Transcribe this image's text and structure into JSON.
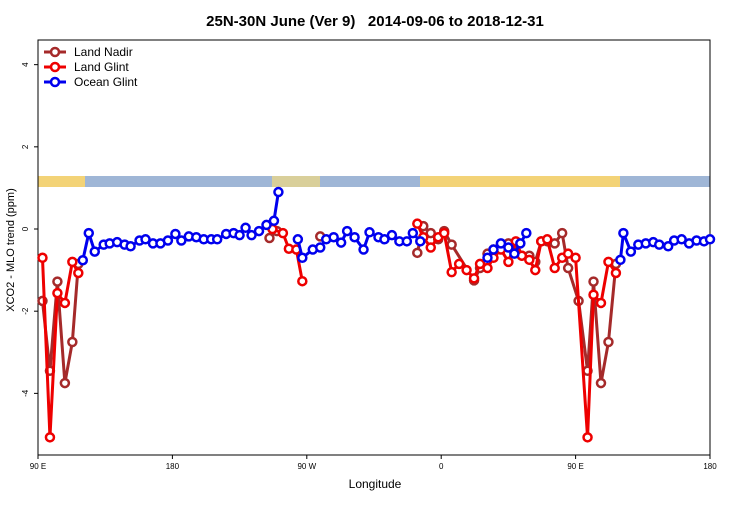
{
  "chart_data": {
    "type": "line",
    "title": "25N-30N June (Ver 9)   2014-09-06 to 2018-12-31",
    "xlabel": "Longitude",
    "ylabel": "XCO2 - MLO trend (ppm)",
    "xlim": [
      90,
      540
    ],
    "ylim": [
      -5.5,
      4.6
    ],
    "xticks": [
      {
        "value": 90,
        "label": "90 E"
      },
      180,
      {
        "value": 270,
        "label": "90 W"
      },
      {
        "value": 360,
        "label": "0"
      },
      {
        "value": 450,
        "label": "90 E"
      },
      {
        "value": 540,
        "label": "180"
      }
    ],
    "yticks": [
      -4,
      -2,
      0,
      2,
      4
    ],
    "legend": "top-left",
    "series": [
      {
        "name": "Land Nadir",
        "color": "#a52a2a",
        "x": [
          93,
          98,
          103,
          108,
          113,
          117,
          180,
          245,
          250,
          265,
          279,
          310,
          344,
          348,
          353,
          358,
          362,
          367,
          382,
          386,
          391,
          395,
          400,
          405,
          410,
          414,
          419,
          423,
          427,
          431,
          436,
          441,
          445,
          452,
          458,
          462,
          467,
          472,
          477
        ],
        "values": [
          -1.75,
          -3.45,
          -1.28,
          -3.75,
          -2.75,
          -0.85,
          null,
          -0.22,
          -0.05,
          null,
          -0.18,
          null,
          -0.58,
          0.07,
          -0.1,
          -0.25,
          -0.05,
          -0.38,
          -1.25,
          -0.95,
          -0.6,
          -0.5,
          -0.38,
          -0.35,
          -0.55,
          -0.65,
          -0.65,
          -0.8,
          -0.3,
          -0.3,
          -0.35,
          -0.1,
          -0.95,
          -1.75,
          -3.45,
          -1.28,
          -3.75,
          -2.75,
          -0.85
        ]
      },
      {
        "name": "Land Glint",
        "color": "#ee0000",
        "x": [
          93,
          98,
          103,
          108,
          113,
          117,
          180,
          247,
          254,
          258,
          263,
          267,
          300,
          344,
          348,
          353,
          358,
          362,
          367,
          372,
          377,
          382,
          386,
          391,
          395,
          400,
          405,
          410,
          414,
          419,
          423,
          427,
          431,
          436,
          441,
          445,
          450,
          458,
          462,
          467,
          472,
          477
        ],
        "values": [
          -0.7,
          -5.07,
          -1.56,
          -1.8,
          -0.8,
          -1.07,
          null,
          0.0,
          -0.1,
          -0.48,
          -0.5,
          -1.27,
          null,
          0.13,
          -0.2,
          -0.45,
          -0.2,
          -0.1,
          -1.05,
          -0.85,
          -1.0,
          -1.2,
          -0.85,
          -0.95,
          -0.7,
          -0.5,
          -0.8,
          -0.3,
          -0.65,
          -0.75,
          -1.0,
          -0.3,
          -0.25,
          -0.95,
          -0.7,
          -0.6,
          -0.7,
          -5.07,
          -1.6,
          -1.8,
          -0.8,
          -1.07
        ]
      },
      {
        "name": "Ocean Glint",
        "color": "#0000ee",
        "x": [
          120,
          124,
          128,
          134,
          138,
          143,
          148,
          152,
          158,
          162,
          167,
          172,
          177,
          182,
          186,
          191,
          196,
          201,
          206,
          210,
          216,
          221,
          225,
          229,
          233,
          238,
          243,
          248,
          251,
          258,
          264,
          267,
          274,
          279,
          283,
          288,
          293,
          297,
          302,
          308,
          312,
          318,
          322,
          327,
          332,
          337,
          341,
          346,
          370,
          391,
          395,
          400,
          405,
          409,
          413,
          417,
          450,
          480,
          482,
          487,
          492,
          497,
          502,
          506,
          512,
          516,
          521,
          526,
          531,
          536,
          540
        ],
        "values": [
          -0.76,
          -0.1,
          -0.55,
          -0.38,
          -0.35,
          -0.32,
          -0.38,
          -0.42,
          -0.28,
          -0.25,
          -0.35,
          -0.35,
          -0.28,
          -0.12,
          -0.28,
          -0.18,
          -0.2,
          -0.25,
          -0.25,
          -0.25,
          -0.12,
          -0.1,
          -0.15,
          0.03,
          -0.15,
          -0.05,
          0.1,
          0.2,
          0.9,
          null,
          -0.25,
          -0.7,
          -0.5,
          -0.45,
          -0.25,
          -0.2,
          -0.33,
          -0.05,
          -0.2,
          -0.5,
          -0.08,
          -0.2,
          -0.25,
          -0.15,
          -0.3,
          -0.3,
          -0.1,
          -0.3,
          null,
          -0.7,
          -0.5,
          -0.35,
          -0.45,
          -0.6,
          -0.35,
          -0.1,
          null,
          -0.75,
          -0.1,
          -0.55,
          -0.38,
          -0.35,
          -0.32,
          -0.38,
          -0.42,
          -0.28,
          -0.25,
          -0.35,
          -0.28,
          -0.3,
          -0.25
        ]
      }
    ]
  }
}
